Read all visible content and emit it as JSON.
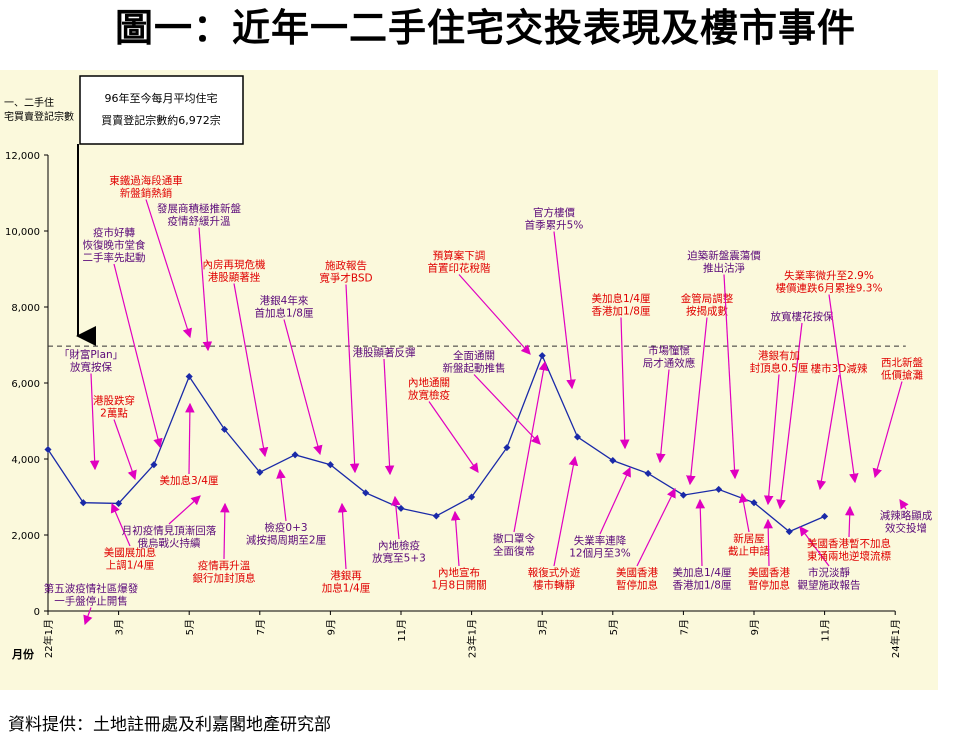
{
  "title": "圖一：近年一二手住宅交投表現及樓市事件",
  "source": "資料提供：土地註冊處及利嘉閣地產研究部",
  "colors": {
    "plot_bg": "#fbf9dc",
    "line": "#1a2aa8",
    "arrow": "#e000c0",
    "annotation_red": "#e00000",
    "annotation_purple": "#5b0a7a"
  },
  "chart_data": {
    "type": "line",
    "ylabel": "一、二手住宅買賣登記宗數",
    "xlabel": "月份",
    "ylim": [
      0,
      12000
    ],
    "yticks": [
      "0",
      "2,000",
      "4,000",
      "6,000",
      "8,000",
      "10,000",
      "12,000"
    ],
    "ytick_values": [
      0,
      2000,
      4000,
      6000,
      8000,
      10000,
      12000
    ],
    "xtick_labels": [
      "22年1月",
      "3月",
      "5月",
      "7月",
      "9月",
      "11月",
      "23年1月",
      "3月",
      "5月",
      "7月",
      "9月",
      "11月",
      "24年1月"
    ],
    "xtick_positions": [
      0,
      2,
      4,
      6,
      8,
      10,
      12,
      14,
      16,
      18,
      20,
      22,
      24
    ],
    "average_line": {
      "value": 6972,
      "legend_line1": "96年至今每月平均住宅",
      "legend_line2": "買賣登記宗數約6,972宗"
    },
    "x": [
      0,
      1,
      2,
      3,
      4,
      5,
      6,
      7,
      8,
      9,
      10,
      11,
      12,
      13,
      14,
      15,
      16,
      17,
      18,
      19,
      20,
      21,
      22
    ],
    "values": [
      4250,
      2850,
      2830,
      3850,
      6170,
      4780,
      3650,
      4110,
      3850,
      3110,
      2700,
      2500,
      3000,
      4300,
      6720,
      4580,
      3960,
      3620,
      3050,
      3200,
      2850,
      2090,
      2490
    ],
    "annotations": [
      {
        "color": "purple",
        "lines": [
          "第五波疫情社區爆發",
          "一手盤停止開售"
        ]
      },
      {
        "color": "red",
        "lines": [
          "美國展加息",
          "上調1/4厘"
        ]
      },
      {
        "color": "purple",
        "lines": [
          "「財富Plan」",
          "放寬按保"
        ]
      },
      {
        "color": "red",
        "lines": [
          "港股跌穿",
          "2萬點"
        ]
      },
      {
        "color": "purple",
        "lines": [
          "疫市好轉",
          "恢復晚市堂食",
          "二手率先起動"
        ]
      },
      {
        "color": "red",
        "lines": [
          "東鐵過海段通車",
          "新盤銷熱銷"
        ]
      },
      {
        "color": "red",
        "lines": [
          "美加息3/4厘"
        ]
      },
      {
        "color": "purple",
        "lines": [
          "月初疫情見頂漸回落",
          "俄烏戰火持續"
        ]
      },
      {
        "color": "purple",
        "lines": [
          "發展商積極推新盤",
          "疫情舒緩升溫"
        ]
      },
      {
        "color": "red",
        "lines": [
          "疫情再升溫",
          "銀行加封頂息"
        ]
      },
      {
        "color": "red",
        "lines": [
          "內房再現危機",
          "港股顯著挫"
        ]
      },
      {
        "color": "purple",
        "lines": [
          "檢疫0+3",
          "減按揭周期至2厘"
        ]
      },
      {
        "color": "purple",
        "lines": [
          "港銀4年來",
          "首加息1/8厘"
        ]
      },
      {
        "color": "red",
        "lines": [
          "施政報告",
          "寬爭才BSD"
        ]
      },
      {
        "color": "red",
        "lines": [
          "港銀再",
          "加息1/4厘"
        ]
      },
      {
        "color": "purple",
        "lines": [
          "港股顯著反彈"
        ]
      },
      {
        "color": "purple",
        "lines": [
          "內地檢疫",
          "放寬至5+3"
        ]
      },
      {
        "color": "red",
        "lines": [
          "內地通關",
          "放寬檢疫"
        ]
      },
      {
        "color": "red",
        "lines": [
          "內地宣布",
          "1月8日開關"
        ]
      },
      {
        "color": "purple",
        "lines": [
          "全面通關",
          "新盤起動推售"
        ]
      },
      {
        "color": "red",
        "lines": [
          "預算案下調",
          "首置印花稅階"
        ]
      },
      {
        "color": "purple",
        "lines": [
          "撤口罩令",
          "全面復常"
        ]
      },
      {
        "color": "purple",
        "lines": [
          "官方樓價",
          "首季累升5%"
        ]
      },
      {
        "color": "red",
        "lines": [
          "報復式外遊",
          "樓市轉靜"
        ]
      },
      {
        "color": "purple",
        "lines": [
          "失業率連降",
          "12個月至3%"
        ]
      },
      {
        "color": "red",
        "lines": [
          "美加息1/4厘",
          "香港加1/8厘"
        ]
      },
      {
        "color": "red",
        "lines": [
          "美國香港",
          "暫停加息"
        ]
      },
      {
        "color": "purple",
        "lines": [
          "市場憧憬",
          "局才通效應"
        ]
      },
      {
        "color": "red",
        "lines": [
          "金管局調整",
          "按揭成數"
        ]
      },
      {
        "color": "purple",
        "lines": [
          "美加息1/4厘",
          "香港加1/8厘"
        ]
      },
      {
        "color": "purple",
        "lines": [
          "迫築新盤震蕩價",
          "推出沽淨"
        ]
      },
      {
        "color": "red",
        "lines": [
          "新居屋",
          "截止申請"
        ]
      },
      {
        "color": "red",
        "lines": [
          "美國香港",
          "暫停加息"
        ]
      },
      {
        "color": "purple",
        "lines": [
          "放寬樓花按保"
        ]
      },
      {
        "color": "red",
        "lines": [
          "港銀有加",
          "封頂息0.5厘"
        ]
      },
      {
        "color": "purple",
        "lines": [
          "市況淡靜",
          "觀望施政報告"
        ]
      },
      {
        "color": "red",
        "lines": [
          "樓市3D減辣"
        ]
      },
      {
        "color": "red",
        "lines": [
          "失業率微升至2.9%",
          "樓價連跌6月累挫9.3%"
        ]
      },
      {
        "color": "red",
        "lines": [
          "西北新盤",
          "低價搶灘"
        ]
      },
      {
        "color": "red",
        "lines": [
          "美國香港暫不加息",
          "東涌兩地逆壞流標"
        ]
      },
      {
        "color": "purple",
        "lines": [
          "減辣略顯成",
          "效交投增"
        ]
      }
    ]
  }
}
